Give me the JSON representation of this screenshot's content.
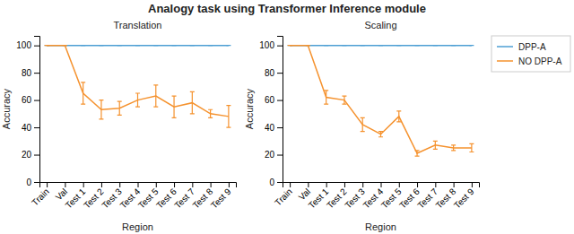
{
  "title": "Analogy task using Transformer Inference module",
  "chart_data": [
    {
      "type": "line",
      "title": "Translation",
      "categories": [
        "Train",
        "Val",
        "Test 1",
        "Test 2",
        "Test 3",
        "Test 4",
        "Test 5",
        "Test 6",
        "Test 7",
        "Test 8",
        "Test 9"
      ],
      "xlabel": "Region",
      "ylabel": "Accuracy",
      "ylim": [
        0,
        107
      ],
      "yticks": [
        0,
        20,
        40,
        60,
        80,
        100
      ],
      "series": [
        {
          "color": "#4e9fd4",
          "values": [
            100,
            100,
            100,
            100,
            100,
            100,
            100,
            100,
            100,
            100,
            100
          ],
          "errors": [
            0,
            0,
            0,
            0,
            0,
            0,
            0,
            0,
            0,
            0,
            0
          ]
        },
        {
          "color": "#f5922e",
          "values": [
            100,
            100,
            65,
            53,
            54,
            60,
            63,
            55,
            58,
            50,
            48
          ],
          "errors": [
            0,
            0,
            8,
            7,
            5,
            5,
            8,
            8,
            8,
            3,
            8
          ]
        }
      ]
    },
    {
      "type": "line",
      "title": "Scaling",
      "categories": [
        "Train",
        "Val",
        "Test 1",
        "Test 2",
        "Test 3",
        "Test 4",
        "Test 5",
        "Test 6",
        "Test 7",
        "Test 8",
        "Test 9"
      ],
      "xlabel": "Region",
      "ylabel": "Accuracy",
      "ylim": [
        0,
        107
      ],
      "yticks": [
        0,
        20,
        40,
        60,
        80,
        100
      ],
      "legend": "right",
      "series": [
        {
          "name": "DPP-A",
          "color": "#4e9fd4",
          "values": [
            100,
            100,
            100,
            100,
            100,
            100,
            100,
            100,
            100,
            100,
            100
          ],
          "errors": [
            0,
            0,
            0,
            0,
            0,
            0,
            0,
            0,
            0,
            0,
            0
          ]
        },
        {
          "name": "NO DPP-A",
          "color": "#f5922e",
          "values": [
            100,
            100,
            62,
            60,
            42,
            35,
            48,
            21,
            27,
            25,
            25
          ],
          "errors": [
            0,
            0,
            5,
            3,
            5,
            2,
            4,
            2,
            3,
            2,
            3
          ]
        }
      ]
    }
  ]
}
